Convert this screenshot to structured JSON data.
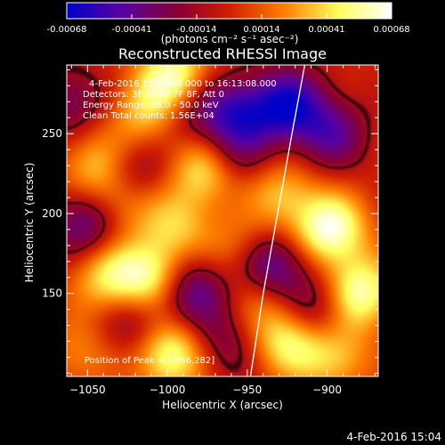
{
  "chart_data": {
    "type": "heatmap",
    "title": "Reconstructed RHESSI Image",
    "xlabel": "Heliocentric X (arcsec)",
    "ylabel": "Heliocentric Y (arcsec)",
    "xlim": [
      -1063,
      -868
    ],
    "ylim": [
      98,
      293
    ],
    "x_ticks": [
      -1050,
      -1000,
      -950,
      -900
    ],
    "y_ticks": [
      150,
      200,
      250
    ],
    "colorbar": {
      "range": [
        -0.00068,
        0.00068
      ],
      "ticks": [
        "-0.00068",
        "-0.00041",
        "-0.00014",
        "0.00014",
        "0.00041",
        "0.00068"
      ],
      "unit_label": "(photons cm⁻² s⁻¹ asec⁻²)",
      "colors": [
        "#0000c8",
        "#5a00a0",
        "#8a0030",
        "#d01e00",
        "#ff8000",
        "#ffff60",
        "#ffffff"
      ]
    },
    "annotations": {
      "time": "4-Feb-2016 16:13:08.000 to 16:13:08.000",
      "detectors": "Detectors: 3F 5F 6F 7F 8F, Att 0",
      "energy": "Energy Range: 25.0 - 50.0 keV",
      "clean": "Clean     Total counts: 1.56E+04",
      "peak": "Position of Peak = [-986,282]"
    },
    "limb_arc": [
      [
        -948,
        98
      ],
      [
        -940,
        150
      ],
      [
        -931,
        200
      ],
      [
        -922,
        250
      ],
      [
        -914,
        293
      ]
    ],
    "sources": [
      {
        "x": -995,
        "y": 284,
        "v": 1.0
      },
      {
        "x": -975,
        "y": 228,
        "v": 0.85
      },
      {
        "x": -1045,
        "y": 230,
        "v": 0.55
      },
      {
        "x": -1030,
        "y": 208,
        "v": 0.55
      },
      {
        "x": -1015,
        "y": 262,
        "v": 0.5
      },
      {
        "x": -1038,
        "y": 160,
        "v": 0.6
      },
      {
        "x": -1010,
        "y": 160,
        "v": 0.8
      },
      {
        "x": -995,
        "y": 192,
        "v": 0.5
      },
      {
        "x": -998,
        "y": 112,
        "v": 0.9
      },
      {
        "x": -1055,
        "y": 112,
        "v": 0.35
      },
      {
        "x": -928,
        "y": 212,
        "v": 0.5
      },
      {
        "x": -898,
        "y": 190,
        "v": 0.95
      },
      {
        "x": -880,
        "y": 150,
        "v": 0.9
      },
      {
        "x": -925,
        "y": 120,
        "v": 0.7
      },
      {
        "x": -895,
        "y": 110,
        "v": 0.55
      },
      {
        "x": -940,
        "y": 150,
        "v": 0.45
      },
      {
        "x": -955,
        "y": 178,
        "v": 0.35
      },
      {
        "x": -985,
        "y": 268,
        "v": -0.55
      },
      {
        "x": -1050,
        "y": 195,
        "v": -0.7
      },
      {
        "x": -1022,
        "y": 225,
        "v": -0.5
      },
      {
        "x": -985,
        "y": 152,
        "v": -0.7
      },
      {
        "x": -955,
        "y": 262,
        "v": -0.65
      },
      {
        "x": -925,
        "y": 268,
        "v": -0.85
      },
      {
        "x": -898,
        "y": 250,
        "v": -0.6
      },
      {
        "x": -935,
        "y": 165,
        "v": -0.9
      },
      {
        "x": -962,
        "y": 235,
        "v": -0.55
      },
      {
        "x": -905,
        "y": 140,
        "v": -0.5
      },
      {
        "x": -1060,
        "y": 270,
        "v": -0.45
      },
      {
        "x": -965,
        "y": 118,
        "v": -0.4
      },
      {
        "x": -1020,
        "y": 130,
        "v": -0.4
      }
    ]
  },
  "footer": {
    "timestamp": "4-Feb-2016 15:04"
  }
}
